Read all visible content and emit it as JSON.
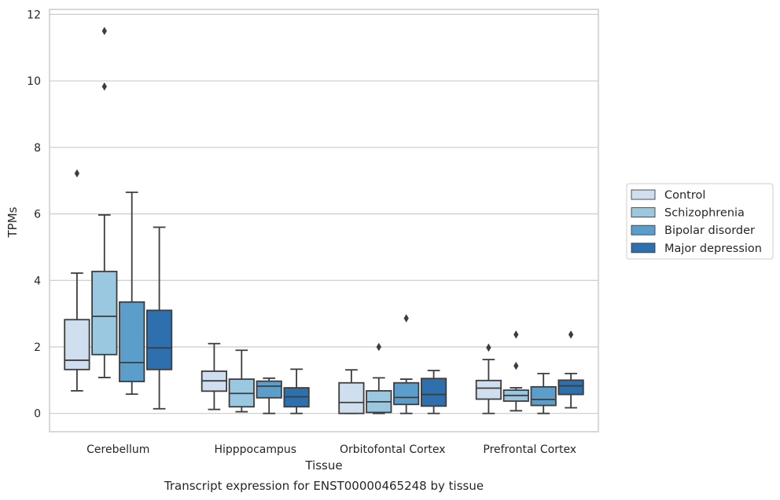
{
  "chart_data": {
    "type": "boxplot",
    "title": "",
    "caption": "Transcript expression for ENST00000465248 by tissue",
    "xlabel": "Tissue",
    "ylabel": "TPMs",
    "ylim": [
      -0.55,
      12.15
    ],
    "yticks": [
      0,
      2,
      4,
      6,
      8,
      10,
      12
    ],
    "grid": "horizontal",
    "legend_position": "right",
    "categories": [
      "Cerebellum",
      "Hipppocampus",
      "Orbitofontal Cortex",
      "Prefrontal Cortex"
    ],
    "series": [
      {
        "name": "Control",
        "color": "#cfdff0",
        "boxes": [
          {
            "whislo": 0.68,
            "q1": 1.32,
            "med": 1.6,
            "q3": 2.82,
            "whishi": 4.22,
            "fliers": [
              7.22
            ]
          },
          {
            "whislo": 0.12,
            "q1": 0.67,
            "med": 0.98,
            "q3": 1.27,
            "whishi": 2.1,
            "fliers": []
          },
          {
            "whislo": 0.0,
            "q1": 0.0,
            "med": 0.33,
            "q3": 0.92,
            "whishi": 1.31,
            "fliers": []
          },
          {
            "whislo": 0.0,
            "q1": 0.43,
            "med": 0.76,
            "q3": 0.99,
            "whishi": 1.62,
            "fliers": [
              1.98
            ]
          }
        ]
      },
      {
        "name": "Schizophrenia",
        "color": "#9ac8e0",
        "boxes": [
          {
            "whislo": 1.08,
            "q1": 1.77,
            "med": 2.92,
            "q3": 4.27,
            "whishi": 5.97,
            "fliers": [
              9.83,
              11.5
            ]
          },
          {
            "whislo": 0.05,
            "q1": 0.2,
            "med": 0.6,
            "q3": 1.03,
            "whishi": 1.9,
            "fliers": []
          },
          {
            "whislo": 0.0,
            "q1": 0.03,
            "med": 0.35,
            "q3": 0.68,
            "whishi": 1.07,
            "fliers": [
              2.0
            ]
          },
          {
            "whislo": 0.08,
            "q1": 0.37,
            "med": 0.54,
            "q3": 0.7,
            "whishi": 0.77,
            "fliers": [
              1.43,
              2.37
            ]
          }
        ]
      },
      {
        "name": "Bipolar disorder",
        "color": "#5b9ecb",
        "boxes": [
          {
            "whislo": 0.58,
            "q1": 0.96,
            "med": 1.53,
            "q3": 3.35,
            "whishi": 6.65,
            "fliers": []
          },
          {
            "whislo": 0.0,
            "q1": 0.47,
            "med": 0.82,
            "q3": 0.97,
            "whishi": 1.06,
            "fliers": []
          },
          {
            "whislo": 0.0,
            "q1": 0.27,
            "med": 0.48,
            "q3": 0.92,
            "whishi": 1.03,
            "fliers": [
              2.86
            ]
          },
          {
            "whislo": 0.0,
            "q1": 0.24,
            "med": 0.42,
            "q3": 0.8,
            "whishi": 1.2,
            "fliers": []
          }
        ]
      },
      {
        "name": "Major depression",
        "color": "#2e6fae",
        "boxes": [
          {
            "whislo": 0.14,
            "q1": 1.32,
            "med": 1.97,
            "q3": 3.1,
            "whishi": 5.6,
            "fliers": []
          },
          {
            "whislo": 0.0,
            "q1": 0.2,
            "med": 0.5,
            "q3": 0.77,
            "whishi": 1.33,
            "fliers": []
          },
          {
            "whislo": 0.0,
            "q1": 0.22,
            "med": 0.57,
            "q3": 1.05,
            "whishi": 1.29,
            "fliers": []
          },
          {
            "whislo": 0.17,
            "q1": 0.57,
            "med": 0.83,
            "q3": 1.0,
            "whishi": 1.2,
            "fliers": [
              2.37
            ]
          }
        ]
      }
    ]
  }
}
